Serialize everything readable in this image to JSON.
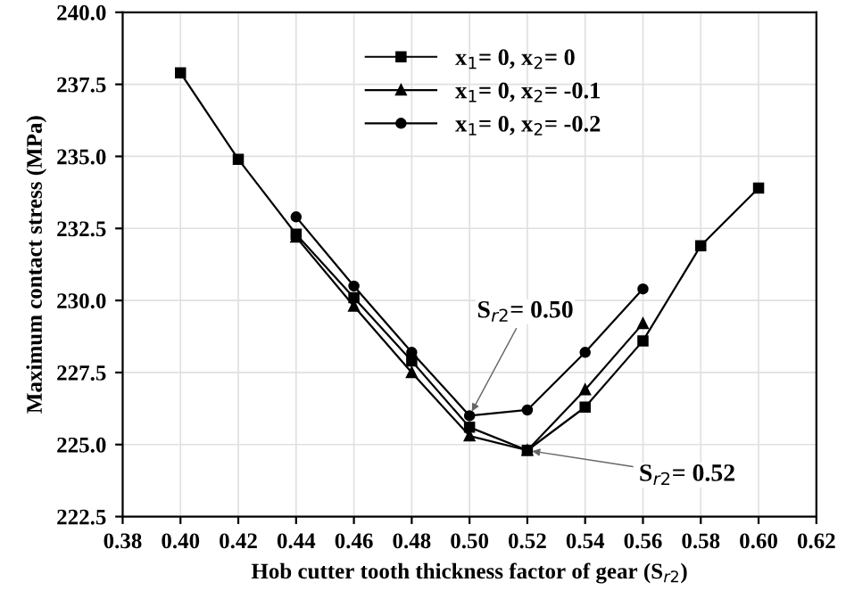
{
  "chart_data": {
    "type": "line",
    "xlabel": "Hob cutter tooth thickness factor of gear (S$_{r2}$)",
    "ylabel": "Maximum contact stress (MPa)",
    "series": [
      {
        "name": "x$_{1}$= 0, x$_{2}$= 0",
        "color": "#000000",
        "marker": "square",
        "x": [
          0.4,
          0.42,
          0.44,
          0.46,
          0.48,
          0.5,
          0.52,
          0.54,
          0.56,
          0.58,
          0.6
        ],
        "values": [
          237.9,
          234.9,
          232.3,
          230.1,
          227.9,
          225.6,
          224.8,
          226.3,
          228.6,
          231.9,
          233.9
        ]
      },
      {
        "name": "x$_{1}$= 0, x$_{2}$= -0.1",
        "color": "#000000",
        "marker": "triangle",
        "x": [
          0.44,
          0.46,
          0.48,
          0.5,
          0.52,
          0.54,
          0.56
        ],
        "values": [
          232.2,
          229.8,
          227.5,
          225.3,
          224.8,
          226.9,
          229.2
        ]
      },
      {
        "name": "x$_{1}$= 0, x$_{2}$= -0.2",
        "color": "#000000",
        "marker": "circle",
        "x": [
          0.44,
          0.46,
          0.48,
          0.5,
          0.52,
          0.54,
          0.56
        ],
        "values": [
          232.9,
          230.5,
          228.2,
          226.0,
          226.2,
          228.2,
          230.4
        ]
      }
    ],
    "annotations": [
      {
        "text": "S$_{r2}$= 0.50",
        "x": 0.5,
        "y": 226.0
      },
      {
        "text": "S$_{r2}$= 0.52",
        "x": 0.52,
        "y": 224.8
      }
    ],
    "xlim": [
      0.38,
      0.62
    ],
    "xticks": [
      0.38,
      {
        "value": 0.4,
        "label": "0.40"
      },
      0.42,
      0.44,
      0.46,
      0.48,
      {
        "value": 0.5,
        "label": "0.50"
      },
      0.52,
      0.54,
      0.56,
      0.58,
      {
        "value": 0.6,
        "label": "0.60"
      },
      0.62
    ],
    "ylim": [
      222.5,
      240.0
    ],
    "yticks": [
      222.5,
      {
        "value": 225.0,
        "label": "225.0"
      },
      227.5,
      {
        "value": 230.0,
        "label": "230.0"
      },
      232.5,
      {
        "value": 235.0,
        "label": "235.0"
      },
      237.5,
      {
        "value": 240.0,
        "label": "240.0"
      }
    ],
    "grid": true,
    "legend": "top right",
    "line_style": "solid"
  }
}
